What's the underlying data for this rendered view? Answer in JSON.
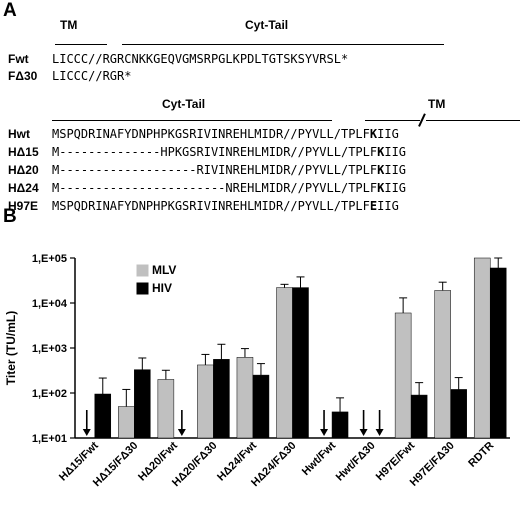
{
  "panel_a": {
    "label": "A",
    "top_headers": {
      "tm": "TM",
      "cyt": "Cyt-Tail"
    },
    "f_rows": [
      {
        "name": "Fwt",
        "seq": "LICCC//RGRCNKKGEQVGMSRPGLKPDLTGTSKSYVRSL*"
      },
      {
        "name": "FΔ30",
        "seq": "LICCC//RGR*"
      }
    ],
    "bottom_headers": {
      "cyt": "Cyt-Tail",
      "tm": "TM"
    },
    "h_rows": [
      {
        "name": "Hwt",
        "pre": "MSPQDRINAFYDNPHPKGSRIVINREHLMIDR//PYVLL/TPLF",
        "res": "K",
        "post": "IIG"
      },
      {
        "name": "HΔ15",
        "pre": "M--------------HPKGSRIVINREHLMIDR//PYVLL/TPLF",
        "res": "K",
        "post": "IIG"
      },
      {
        "name": "HΔ20",
        "pre": "M-------------------RIVINREHLMIDR//PYVLL/TPLF",
        "res": "K",
        "post": "IIG"
      },
      {
        "name": "HΔ24",
        "pre": "M-----------------------NREHLMIDR//PYVLL/TPLF",
        "res": "K",
        "post": "IIG"
      },
      {
        "name": "H97E",
        "pre": "MSPQDRINAFYDNPHPKGSRIVINREHLMIDR//PYVLL/TPLF",
        "res": "E",
        "post": "IIG"
      }
    ]
  },
  "panel_b": {
    "label": "B"
  },
  "chart_data": {
    "type": "bar",
    "ylabel": "Titer (TU/mL)",
    "yscale": "log",
    "ylim": [
      10,
      100000
    ],
    "yticks": [
      "1,E+01",
      "1,E+02",
      "1,E+03",
      "1,E+04",
      "1,E+05"
    ],
    "legend_position": "top-left",
    "categories": [
      "HΔ15/Fwt",
      "HΔ15/FΔ30",
      "HΔ20/Fwt",
      "HΔ20/FΔ30",
      "HΔ24/Fwt",
      "HΔ24/FΔ30",
      "Hwt/Fwt",
      "Hwt/FΔ30",
      "H97E/Fwt",
      "H97E/FΔ30",
      "RDTR"
    ],
    "series": [
      {
        "name": "MLV",
        "color": "#c0c0c0",
        "values": [
          null,
          50,
          200,
          420,
          620,
          22000,
          null,
          null,
          6000,
          19000,
          100000
        ],
        "errors": [
          null,
          70,
          120,
          300,
          350,
          4000,
          null,
          null,
          7000,
          10000,
          0
        ]
      },
      {
        "name": "HIV",
        "color": "#000000",
        "values": [
          95,
          330,
          null,
          560,
          250,
          22000,
          38,
          null,
          90,
          120,
          60000
        ],
        "errors": [
          120,
          270,
          null,
          650,
          200,
          16000,
          40,
          null,
          80,
          100,
          40000
        ]
      }
    ],
    "below_detection": [
      {
        "category": "HΔ15/Fwt",
        "series": "MLV"
      },
      {
        "category": "HΔ20/Fwt",
        "series": "HIV"
      },
      {
        "category": "Hwt/Fwt",
        "series": "MLV"
      },
      {
        "category": "Hwt/FΔ30",
        "series": "MLV"
      },
      {
        "category": "Hwt/FΔ30",
        "series": "HIV"
      }
    ]
  }
}
